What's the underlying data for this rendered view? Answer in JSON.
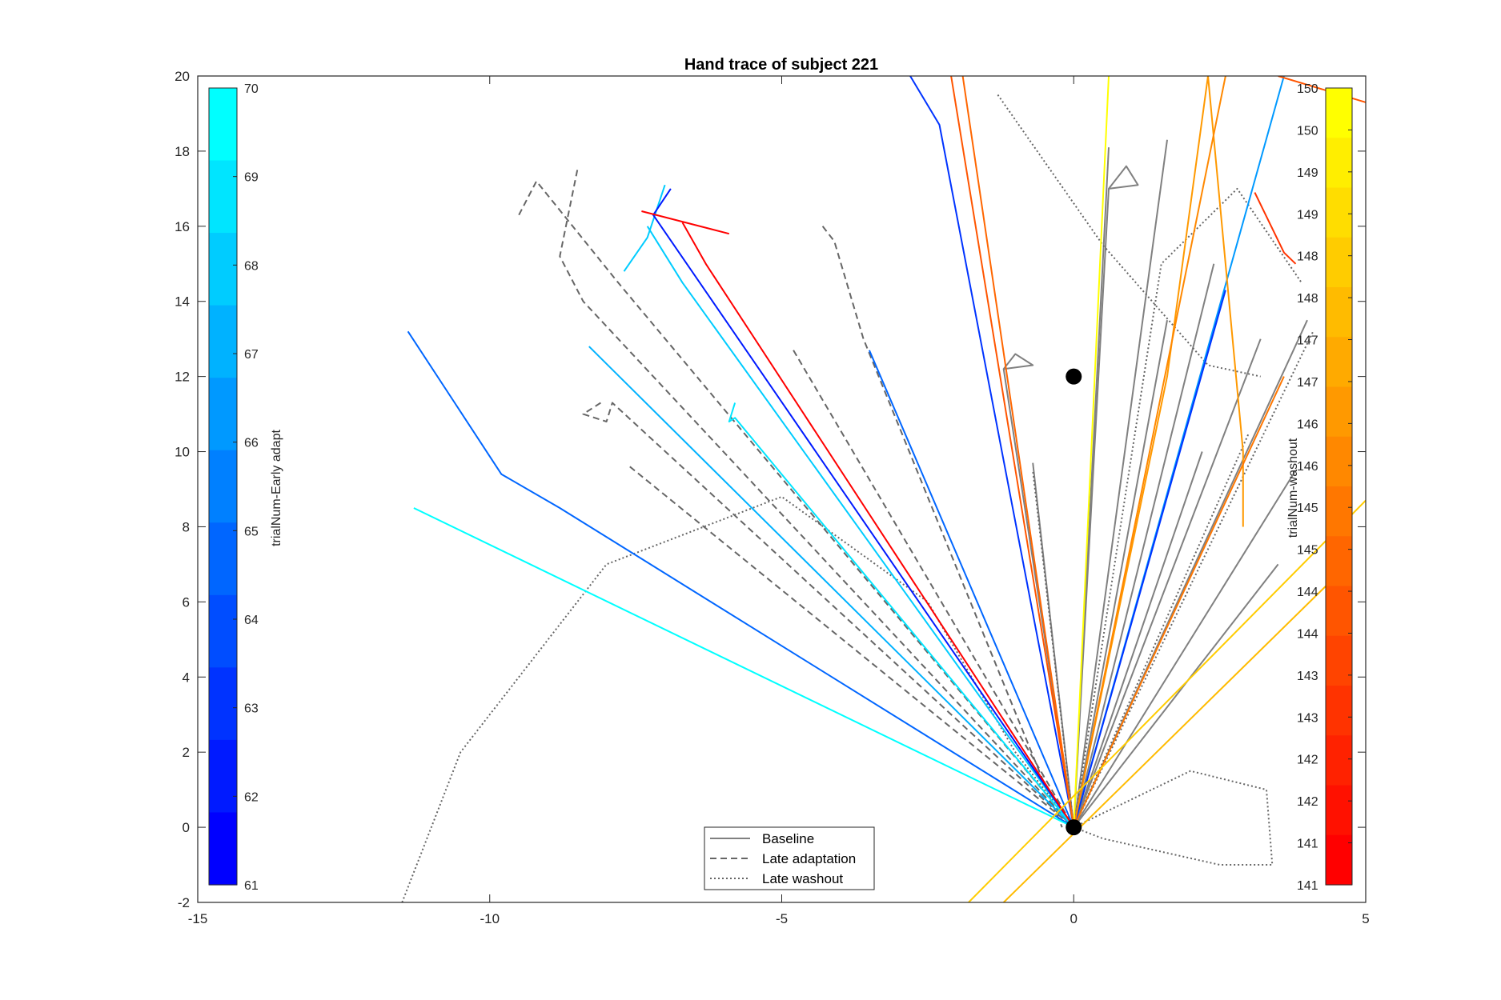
{
  "chart_data": {
    "type": "line",
    "title": "Hand trace of subject 221",
    "xlabel": "",
    "ylabel": "",
    "xlim": [
      -15,
      5
    ],
    "ylim": [
      -2,
      20
    ],
    "xticks": [
      -15,
      -10,
      -5,
      0,
      5
    ],
    "yticks": [
      -2,
      0,
      2,
      4,
      6,
      8,
      10,
      12,
      14,
      16,
      18,
      20
    ],
    "grid": false,
    "legend": {
      "location": "bottom-center",
      "entries": [
        "Baseline",
        "Late adaptation",
        "Late washout"
      ]
    },
    "markers": [
      {
        "name": "start",
        "x": 0,
        "y": 0
      },
      {
        "name": "target",
        "x": 0,
        "y": 12
      }
    ],
    "colorbars": [
      {
        "label": "trialNum-Early adapt",
        "location": "left",
        "ticks": [
          "70",
          "69",
          "68",
          "67",
          "66",
          "65",
          "64",
          "63",
          "62",
          "61"
        ],
        "colors": [
          "#00FFFF",
          "#00E5FF",
          "#00CCFF",
          "#00B2FF",
          "#0099FF",
          "#0080FF",
          "#0066FF",
          "#004DFF",
          "#0033FF",
          "#001AFF",
          "#0000FF"
        ]
      },
      {
        "label": "trialNum-washout",
        "location": "right",
        "ticks": [
          "150",
          "150",
          "149",
          "149",
          "148",
          "148",
          "147",
          "147",
          "146",
          "146",
          "145",
          "145",
          "144",
          "144",
          "143",
          "143",
          "142",
          "142",
          "141",
          "141"
        ],
        "colors": [
          "#FFFF00",
          "#FFEE00",
          "#FFDD00",
          "#FFCC00",
          "#FFBB00",
          "#FFAA00",
          "#FF9900",
          "#FF8800",
          "#FF7700",
          "#FF6600",
          "#FF5500",
          "#FF4400",
          "#FF3300",
          "#FF2200",
          "#FF1100",
          "#FF0000"
        ]
      }
    ],
    "series": [
      {
        "name": "Baseline",
        "style": "solid",
        "color": "#808080",
        "x": [
          0,
          -1.2,
          -1.0,
          -0.7,
          -1.2
        ],
        "y": [
          0,
          12.2,
          12.6,
          12.3,
          12.2
        ]
      },
      {
        "name": "Baseline",
        "style": "solid",
        "color": "#808080",
        "x": [
          0,
          0.6,
          0.9,
          1.1,
          0.6
        ],
        "y": [
          0,
          17,
          17.6,
          17.1,
          17
        ]
      },
      {
        "name": "Baseline",
        "style": "solid",
        "color": "#808080",
        "x": [
          0,
          0.6
        ],
        "y": [
          0,
          18.1
        ]
      },
      {
        "name": "Baseline",
        "style": "solid",
        "color": "#808080",
        "x": [
          0,
          1.6
        ],
        "y": [
          0,
          13.5
        ]
      },
      {
        "name": "Baseline",
        "style": "solid",
        "color": "#808080",
        "x": [
          0,
          2.4
        ],
        "y": [
          0,
          15
        ]
      },
      {
        "name": "Baseline",
        "style": "solid",
        "color": "#808080",
        "x": [
          0,
          3.2
        ],
        "y": [
          0,
          13
        ]
      },
      {
        "name": "Baseline",
        "style": "solid",
        "color": "#808080",
        "x": [
          0,
          4.0
        ],
        "y": [
          0,
          13.5
        ]
      },
      {
        "name": "Baseline",
        "style": "solid",
        "color": "#808080",
        "x": [
          0,
          3.8
        ],
        "y": [
          0,
          9.5
        ]
      },
      {
        "name": "Baseline",
        "style": "solid",
        "color": "#808080",
        "x": [
          0,
          3.5
        ],
        "y": [
          0,
          7
        ]
      },
      {
        "name": "Baseline",
        "style": "solid",
        "color": "#808080",
        "x": [
          0,
          2.2
        ],
        "y": [
          0,
          10
        ]
      },
      {
        "name": "Baseline",
        "style": "solid",
        "color": "#808080",
        "x": [
          0,
          1.6
        ],
        "y": [
          0,
          18.3
        ]
      },
      {
        "name": "Baseline",
        "style": "solid",
        "color": "#808080",
        "x": [
          0,
          -0.7
        ],
        "y": [
          0,
          9.7
        ]
      },
      {
        "name": "Late adaptation",
        "style": "dashed",
        "color": "#666666",
        "x": [
          -9.5,
          -9.2,
          -7.8,
          0
        ],
        "y": [
          16.3,
          17.2,
          14.5,
          0
        ]
      },
      {
        "name": "Late adaptation",
        "style": "dashed",
        "color": "#666666",
        "x": [
          -8.5,
          -8.8,
          -8.4,
          0
        ],
        "y": [
          17.5,
          15.2,
          14,
          0
        ]
      },
      {
        "name": "Late adaptation",
        "style": "dashed",
        "color": "#666666",
        "x": [
          -4.3,
          -4.1,
          -3.6,
          -0.2
        ],
        "y": [
          16,
          15.6,
          13,
          0
        ]
      },
      {
        "name": "Late adaptation",
        "style": "dashed",
        "color": "#666666",
        "x": [
          -4.8,
          0
        ],
        "y": [
          12.7,
          0
        ]
      },
      {
        "name": "Late adaptation",
        "style": "dashed",
        "color": "#666666",
        "x": [
          -8.1,
          -8.4,
          -8.0,
          -7.9,
          0
        ],
        "y": [
          11.3,
          11,
          10.8,
          11.3,
          0
        ]
      },
      {
        "name": "Late adaptation",
        "style": "dashed",
        "color": "#666666",
        "x": [
          -7.6,
          0
        ],
        "y": [
          9.6,
          0
        ]
      },
      {
        "name": "Late washout",
        "style": "dotted",
        "color": "#666666",
        "x": [
          -11.5,
          -10.5,
          -8.0,
          -5.0,
          -2.5,
          -1.0,
          0
        ],
        "y": [
          -2,
          2,
          7,
          8.8,
          6,
          2,
          0
        ]
      },
      {
        "name": "Late washout",
        "style": "dotted",
        "color": "#666666",
        "x": [
          0,
          2,
          3.3,
          3.4,
          2.5,
          0.5,
          0
        ],
        "y": [
          0,
          1.5,
          1,
          -1,
          -1,
          -0.3,
          0
        ]
      },
      {
        "name": "Late washout",
        "style": "dotted",
        "color": "#666666",
        "x": [
          0,
          1.5,
          2.8,
          3.9
        ],
        "y": [
          0,
          15,
          17,
          14.5
        ]
      },
      {
        "name": "Late washout",
        "style": "dotted",
        "color": "#666666",
        "x": [
          0,
          4.1
        ],
        "y": [
          0,
          13.2
        ]
      },
      {
        "name": "Late washout",
        "style": "dotted",
        "color": "#666666",
        "x": [
          0,
          3.0
        ],
        "y": [
          0,
          10.5
        ]
      },
      {
        "name": "Late washout",
        "style": "dotted",
        "color": "#666666",
        "x": [
          -1.3,
          0.5,
          2.3,
          3.2
        ],
        "y": [
          19.5,
          15.5,
          12.3,
          12
        ]
      },
      {
        "name": "Late washout",
        "style": "dotted",
        "color": "#666666",
        "x": [
          0,
          -0.7
        ],
        "y": [
          0,
          9.5
        ]
      },
      {
        "name": "Early adapt",
        "style": "solid",
        "color": "#0066FF",
        "x": [
          -11.4,
          -10.6,
          -9.8,
          -8.8,
          0
        ],
        "y": [
          13.2,
          11.3,
          9.4,
          8.5,
          0
        ]
      },
      {
        "name": "Early adapt",
        "style": "solid",
        "color": "#00FFFF",
        "x": [
          -11.3,
          0
        ],
        "y": [
          8.5,
          0
        ]
      },
      {
        "name": "Early adapt",
        "style": "solid",
        "color": "#00CCFF",
        "x": [
          -7.7,
          -7.3,
          -7.0
        ],
        "y": [
          14.8,
          15.7,
          17.1
        ]
      },
      {
        "name": "Early adapt",
        "style": "solid",
        "color": "#00CCFF",
        "x": [
          -7.3,
          -6.7,
          0
        ],
        "y": [
          16,
          14.5,
          0
        ]
      },
      {
        "name": "Early adapt",
        "style": "solid",
        "color": "#001AFF",
        "x": [
          -6.9,
          -7.2,
          0
        ],
        "y": [
          17,
          16.3,
          0
        ]
      },
      {
        "name": "Early adapt",
        "style": "solid",
        "color": "#00B2FF",
        "x": [
          -8.3,
          0
        ],
        "y": [
          12.8,
          0
        ]
      },
      {
        "name": "Early adapt",
        "style": "solid",
        "color": "#00E5FF",
        "x": [
          -5.8,
          -5.9,
          -5.8,
          0
        ],
        "y": [
          11.3,
          10.8,
          10.9,
          0
        ]
      },
      {
        "name": "Early adapt",
        "style": "solid",
        "color": "#0033FF",
        "x": [
          -2.8,
          -2.3,
          0
        ],
        "y": [
          20,
          18.7,
          0
        ]
      },
      {
        "name": "Early adapt",
        "style": "solid",
        "color": "#0066FF",
        "x": [
          -3.5,
          0
        ],
        "y": [
          12.7,
          0
        ]
      },
      {
        "name": "Early adapt",
        "style": "solid",
        "color": "#0099FF",
        "x": [
          0,
          3.6
        ],
        "y": [
          0,
          20
        ]
      },
      {
        "name": "Early adapt",
        "style": "solid",
        "color": "#0033FF",
        "x": [
          0,
          2.6
        ],
        "y": [
          0,
          14.3
        ]
      },
      {
        "name": "Washout",
        "style": "solid",
        "color": "#FF0000",
        "x": [
          -7.4,
          -5.9
        ],
        "y": [
          16.4,
          15.8
        ]
      },
      {
        "name": "Washout",
        "style": "solid",
        "color": "#FF0000",
        "x": [
          -6.7,
          -6.3,
          0
        ],
        "y": [
          16.1,
          15,
          0
        ]
      },
      {
        "name": "Washout",
        "style": "solid",
        "color": "#FF3300",
        "x": [
          3.1,
          3.6,
          3.8
        ],
        "y": [
          16.9,
          15.3,
          15.0
        ]
      },
      {
        "name": "Washout",
        "style": "solid",
        "color": "#FF5500",
        "x": [
          0,
          -2.1
        ],
        "y": [
          0,
          20
        ]
      },
      {
        "name": "Washout",
        "style": "solid",
        "color": "#FF6600",
        "x": [
          0,
          -1.9
        ],
        "y": [
          0,
          20
        ]
      },
      {
        "name": "Washout",
        "style": "solid",
        "color": "#FF9900",
        "x": [
          0,
          1.6,
          2.3,
          2.9,
          2.9
        ],
        "y": [
          0,
          12,
          20,
          10,
          8
        ]
      },
      {
        "name": "Washout",
        "style": "solid",
        "color": "#FF8800",
        "x": [
          0,
          2.6
        ],
        "y": [
          0,
          20
        ]
      },
      {
        "name": "Washout",
        "style": "solid",
        "color": "#FF7700",
        "x": [
          0,
          3.6
        ],
        "y": [
          0,
          12
        ]
      },
      {
        "name": "Washout",
        "style": "solid",
        "color": "#FFFF00",
        "x": [
          0,
          0.6
        ],
        "y": [
          0,
          20
        ]
      },
      {
        "name": "Washout",
        "style": "solid",
        "color": "#FFCC00",
        "x": [
          -1.8,
          5
        ],
        "y": [
          -2,
          8.7
        ]
      },
      {
        "name": "Washout",
        "style": "solid",
        "color": "#FFBB00",
        "x": [
          -1.2,
          4.5
        ],
        "y": [
          -2,
          6.7
        ]
      },
      {
        "name": "Washout",
        "style": "solid",
        "color": "#FF5500",
        "x": [
          3.5,
          5
        ],
        "y": [
          20,
          19.3
        ]
      }
    ]
  }
}
